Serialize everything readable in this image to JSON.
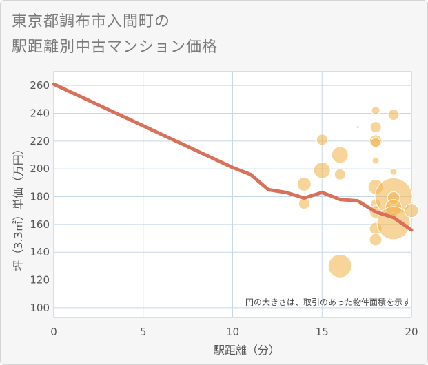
{
  "header": {
    "title_line1": "東京都調布市入間町の",
    "title_line2": "駅距離別中古マンション価格"
  },
  "chart_data": {
    "type": "scatter",
    "title": "東京都調布市入間町の駅距離別中古マンション価格",
    "xlabel": "駅距離（分）",
    "ylabel": "坪（3.3㎡）単価（万円）",
    "xlim": [
      0,
      20
    ],
    "ylim": [
      93,
      270
    ],
    "xticks": [
      0,
      5,
      10,
      15,
      20
    ],
    "yticks": [
      100,
      120,
      140,
      160,
      180,
      200,
      220,
      240,
      260
    ],
    "grid": true,
    "annotation": "円の大きさは、取引のあった物件面積を示す",
    "colors": {
      "line": "#d9705a",
      "bubble": "#f2b856",
      "grid": "#c5d8ea",
      "plot_bg": "#ffffff"
    },
    "line": {
      "x": [
        0,
        1,
        2,
        3,
        4,
        5,
        6,
        7,
        8,
        9,
        10,
        11,
        12,
        13,
        14,
        15,
        16,
        17,
        18,
        19,
        20
      ],
      "y": [
        261,
        255,
        249,
        243,
        237,
        231,
        225,
        219,
        213,
        207,
        201,
        196,
        185,
        183,
        179,
        183,
        178,
        177,
        169,
        165,
        156
      ]
    },
    "bubbles": [
      {
        "x": 14,
        "y": 189,
        "size": 10
      },
      {
        "x": 14,
        "y": 175,
        "size": 8
      },
      {
        "x": 15,
        "y": 221,
        "size": 8
      },
      {
        "x": 15,
        "y": 199,
        "size": 12
      },
      {
        "x": 16,
        "y": 210,
        "size": 12
      },
      {
        "x": 16,
        "y": 196,
        "size": 8
      },
      {
        "x": 16,
        "y": 130,
        "size": 17
      },
      {
        "x": 17,
        "y": 230,
        "size": 2
      },
      {
        "x": 18,
        "y": 242,
        "size": 6
      },
      {
        "x": 18,
        "y": 230,
        "size": 8
      },
      {
        "x": 18,
        "y": 220,
        "size": 9
      },
      {
        "x": 18,
        "y": 219,
        "size": 7
      },
      {
        "x": 18,
        "y": 206,
        "size": 5
      },
      {
        "x": 18,
        "y": 187,
        "size": 11
      },
      {
        "x": 18,
        "y": 175,
        "size": 7
      },
      {
        "x": 18,
        "y": 169,
        "size": 9
      },
      {
        "x": 18,
        "y": 157,
        "size": 9
      },
      {
        "x": 18,
        "y": 149,
        "size": 9
      },
      {
        "x": 19,
        "y": 239,
        "size": 8
      },
      {
        "x": 19,
        "y": 217,
        "size": 1
      },
      {
        "x": 19,
        "y": 198,
        "size": 5
      },
      {
        "x": 19,
        "y": 180,
        "size": 27
      },
      {
        "x": 19,
        "y": 179,
        "size": 9
      },
      {
        "x": 19,
        "y": 172,
        "size": 12
      },
      {
        "x": 19,
        "y": 166,
        "size": 5
      },
      {
        "x": 19,
        "y": 161,
        "size": 24
      },
      {
        "x": 20,
        "y": 170,
        "size": 10
      }
    ]
  }
}
